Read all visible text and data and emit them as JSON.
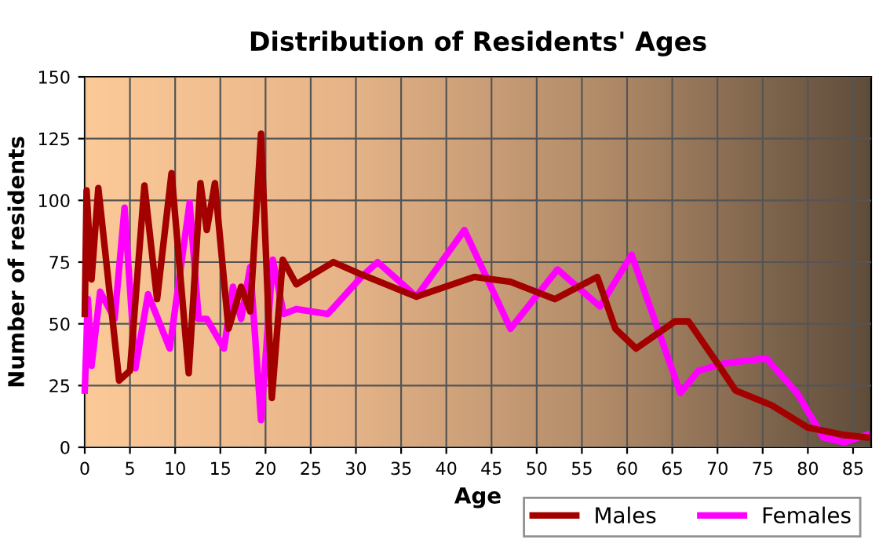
{
  "chart_data": {
    "type": "line",
    "title": "Distribution of Residents' Ages",
    "xlabel": "Age",
    "ylabel": "Number of residents",
    "xlim": [
      0,
      87
    ],
    "xticks": [
      0,
      5,
      10,
      15,
      20,
      25,
      30,
      35,
      40,
      45,
      50,
      55,
      60,
      65,
      70,
      75,
      80,
      85
    ],
    "ylim": [
      0,
      150
    ],
    "yticks": [
      0,
      25,
      50,
      75,
      100,
      125,
      150
    ],
    "grid": true,
    "legend": "bottom right",
    "line_style": "solid",
    "marker": "none",
    "series": [
      {
        "name": "Males",
        "color": "#a30000",
        "x": [
          0,
          0.2,
          0.75,
          1.5,
          3.8,
          5,
          6.6,
          8,
          9.6,
          11.5,
          12.8,
          13.5,
          14.4,
          15.9,
          17.3,
          18.3,
          19.5,
          20.7,
          21.9,
          23.4,
          27.5,
          30.6,
          36.7,
          43.1,
          47.1,
          52,
          56.7,
          58.7,
          61,
          65.3,
          66.8,
          70,
          72,
          76,
          80,
          84,
          86.5
        ],
        "values": [
          54,
          104,
          68,
          105,
          27,
          31,
          106,
          60,
          111,
          30,
          107,
          88,
          107,
          48,
          65,
          55,
          127,
          20,
          76,
          66,
          75,
          70,
          61,
          69,
          67,
          60,
          69,
          48,
          40,
          51,
          51,
          34,
          23,
          17,
          8,
          5,
          4
        ]
      },
      {
        "name": "Females",
        "color": "#ff00ff",
        "x": [
          0,
          0.35,
          0.75,
          1.7,
          3.3,
          4.4,
          5.6,
          7,
          9.4,
          11.6,
          12.6,
          13.5,
          15.4,
          16.4,
          17.3,
          18.3,
          19.5,
          20.8,
          22,
          23.4,
          26.9,
          30.6,
          32.4,
          36.7,
          42,
          47.1,
          52.3,
          57,
          60.5,
          65.9,
          67.9,
          70.8,
          75.4,
          78.8,
          81.7,
          84,
          86.5
        ],
        "values": [
          23,
          60,
          33,
          63,
          52,
          97,
          32,
          62,
          40,
          99,
          52,
          52,
          40,
          65,
          52,
          73,
          11,
          76,
          54,
          56,
          54,
          69,
          75,
          61,
          88,
          48,
          72,
          57,
          78,
          22,
          31,
          34,
          36,
          22,
          4,
          2,
          5
        ]
      }
    ]
  }
}
